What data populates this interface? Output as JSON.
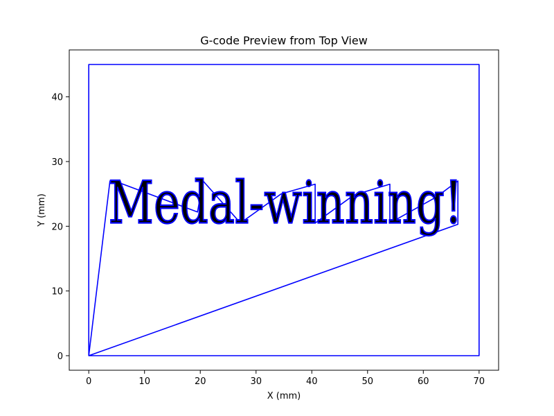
{
  "chart_data": {
    "type": "line",
    "title": "G-code Preview from Top View",
    "xlabel": "X (mm)",
    "ylabel": "Y (mm)",
    "xlim": [
      -3.5,
      73.5
    ],
    "ylim": [
      -2.25,
      47.25
    ],
    "xticks": [
      0,
      10,
      20,
      30,
      40,
      50,
      60,
      70
    ],
    "yticks": [
      0,
      10,
      20,
      30,
      40
    ],
    "grid": false,
    "series_color": "#0000ff",
    "series": [
      {
        "label_text": "Medal-winning!",
        "text_box": {
          "x": [
            3.5,
            67
          ],
          "y": [
            17,
            28
          ]
        },
        "x": [
          0,
          0,
          70,
          70,
          0,
          0,
          3.8,
          4.6,
          19.5,
          20.5,
          27.2,
          34.5,
          40.6,
          40.6,
          47.5,
          54.0,
          54.0,
          62.3,
          66.2,
          66.2,
          66.2,
          66.2,
          0
        ],
        "y": [
          0,
          45,
          45,
          0,
          0,
          0,
          27,
          27,
          22.2,
          27,
          20.5,
          25,
          26.5,
          20.5,
          24.8,
          26.5,
          20.5,
          24.5,
          27,
          20.5,
          26.5,
          20.3,
          0
        ]
      }
    ]
  }
}
